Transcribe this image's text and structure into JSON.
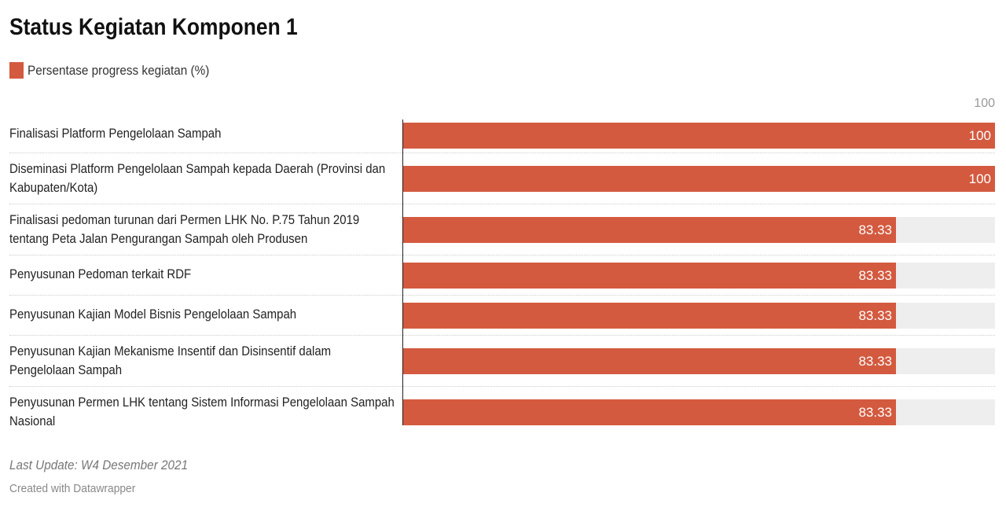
{
  "chart_data": {
    "type": "bar",
    "orientation": "horizontal",
    "title": "Status Kegiatan Komponen 1",
    "legend": [
      {
        "name": "Persentase progress kegiatan (%)",
        "color": "#d35a3f"
      }
    ],
    "axis_top_label": "100",
    "xlim": [
      0,
      100
    ],
    "categories": [
      "Finalisasi Platform Pengelolaan Sampah",
      "Diseminasi Platform Pengelolaan Sampah kepada Daerah (Provinsi dan Kabupaten/Kota)",
      "Finalisasi pedoman turunan dari Permen LHK No. P.75 Tahun 2019 tentang Peta Jalan Pengurangan Sampah oleh Produsen",
      "Penyusunan Pedoman terkait RDF",
      "Penyusunan Kajian Model Bisnis Pengelolaan Sampah",
      "Penyusunan Kajian Mekanisme Insentif dan Disinsentif dalam Pengelolaan Sampah",
      "Penyusunan Permen LHK tentang Sistem Informasi Pengelolaan Sampah Nasional"
    ],
    "series": [
      {
        "name": "Persentase progress kegiatan (%)",
        "color": "#d35a3f",
        "values": [
          100,
          100,
          83.33,
          83.33,
          83.33,
          83.33,
          83.33
        ]
      }
    ],
    "value_labels": [
      "100",
      "100",
      "83.33",
      "83.33",
      "83.33",
      "83.33",
      "83.33"
    ]
  },
  "footer": {
    "note": "Last Update: W4 Desember 2021",
    "credit": "Created with Datawrapper"
  }
}
